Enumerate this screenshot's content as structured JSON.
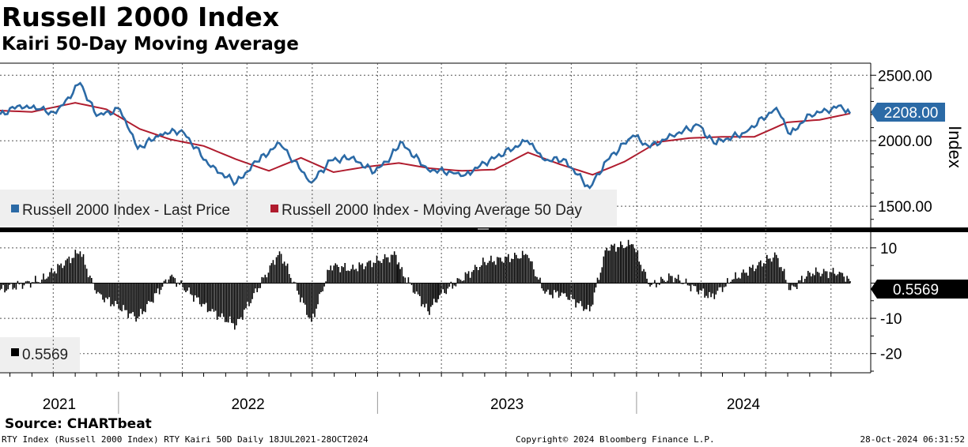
{
  "title": "Russell 2000 Index",
  "subtitle": "Kairi 50-Day Moving Average",
  "source": "Source: CHARTbeat",
  "footer": {
    "left": "RTY Index (Russell 2000 Index) RTY Kairi 50D  Daily 18JUL2021-28OCT2024",
    "center": "Copyright© 2024 Bloomberg Finance L.P.",
    "right": "28-Oct-2024 06:31:52"
  },
  "colors": {
    "price": "#2b6aa6",
    "ma": "#b01c2e",
    "kairi": "#000000",
    "grid": "#555555"
  },
  "chart_data": [
    {
      "type": "line",
      "ylabel": "Index",
      "ylim": [
        1350,
        2580
      ],
      "yticks": [
        1500,
        2000,
        2500
      ],
      "ytick_labels": [
        "1500.00",
        "2000.00",
        "2500.00"
      ],
      "last_value_label": "2208.00",
      "legend": [
        "Russell 2000 Index - Last Price",
        "Russell 2000 Index - Moving Average 50 Day"
      ],
      "series": [
        {
          "name": "Russell 2000 Index - Last Price",
          "x": [
            "2021-07-18",
            "2021-08-15",
            "2021-09-10",
            "2021-10-05",
            "2021-11-08",
            "2021-12-01",
            "2022-01-03",
            "2022-01-28",
            "2022-03-01",
            "2022-03-31",
            "2022-05-11",
            "2022-06-16",
            "2022-07-15",
            "2022-08-16",
            "2022-09-30",
            "2022-10-27",
            "2022-11-25",
            "2022-12-28",
            "2023-01-20",
            "2023-02-02",
            "2023-03-13",
            "2023-04-15",
            "2023-05-05",
            "2023-06-01",
            "2023-07-31",
            "2023-08-25",
            "2023-09-20",
            "2023-10-27",
            "2023-11-20",
            "2023-12-27",
            "2024-01-20",
            "2024-02-20",
            "2024-03-28",
            "2024-04-19",
            "2024-06-01",
            "2024-07-16",
            "2024-08-05",
            "2024-09-01",
            "2024-09-25",
            "2024-10-15",
            "2024-10-28"
          ],
          "values": [
            2200,
            2270,
            2240,
            2210,
            2440,
            2190,
            2240,
            1940,
            2050,
            2080,
            1800,
            1680,
            1840,
            1980,
            1680,
            1850,
            1870,
            1760,
            1880,
            1990,
            1780,
            1760,
            1740,
            1830,
            2000,
            1850,
            1860,
            1640,
            1850,
            2040,
            1950,
            2040,
            2120,
            1980,
            2060,
            2250,
            2050,
            2200,
            2230,
            2270,
            2208
          ]
        },
        {
          "name": "Russell 2000 Index - Moving Average 50 Day",
          "x": [
            "2021-07-18",
            "2021-09-01",
            "2021-11-01",
            "2021-12-15",
            "2022-01-31",
            "2022-03-15",
            "2022-05-01",
            "2022-06-15",
            "2022-08-01",
            "2022-09-15",
            "2022-10-31",
            "2022-12-15",
            "2023-01-31",
            "2023-03-15",
            "2023-04-30",
            "2023-06-15",
            "2023-08-01",
            "2023-09-15",
            "2023-10-31",
            "2023-12-15",
            "2024-01-31",
            "2024-03-15",
            "2024-04-30",
            "2024-06-15",
            "2024-07-31",
            "2024-09-15",
            "2024-10-28"
          ],
          "values": [
            2230,
            2220,
            2290,
            2240,
            2090,
            2010,
            1960,
            1860,
            1770,
            1870,
            1760,
            1800,
            1830,
            1790,
            1770,
            1780,
            1910,
            1820,
            1740,
            1840,
            1990,
            2020,
            2030,
            2030,
            2140,
            2160,
            2208
          ]
        }
      ]
    },
    {
      "type": "bar",
      "name": "Kairi 50D",
      "ylim": [
        -25,
        14
      ],
      "yticks": [
        -20,
        -10,
        0,
        10
      ],
      "ytick_labels": [
        "-20",
        "-10",
        "0",
        "10"
      ],
      "last_value_label": "0.5569",
      "legend": [
        "0.5569"
      ],
      "x": [
        "2021-07-18",
        "2021-09-15",
        "2021-11-08",
        "2021-12-01",
        "2022-01-28",
        "2022-03-15",
        "2022-05-11",
        "2022-06-16",
        "2022-08-16",
        "2022-09-30",
        "2022-10-27",
        "2022-11-25",
        "2023-01-27",
        "2023-02-02",
        "2023-03-13",
        "2023-04-01",
        "2023-06-01",
        "2023-07-31",
        "2023-08-25",
        "2023-09-20",
        "2023-10-27",
        "2023-11-20",
        "2023-12-27",
        "2024-01-20",
        "2024-02-20",
        "2024-04-15",
        "2024-05-15",
        "2024-07-16",
        "2024-08-05",
        "2024-09-01",
        "2024-10-15",
        "2024-10-28"
      ],
      "values": [
        -2,
        1,
        9,
        -3,
        -10,
        2,
        -8,
        -12,
        9,
        -11,
        5,
        4,
        8,
        4,
        -8,
        -3,
        6,
        8,
        -3,
        -3,
        -8,
        10,
        11,
        -1,
        2,
        -4,
        1,
        8,
        -2,
        3,
        3,
        0.5569
      ]
    }
  ],
  "x_axis": {
    "year_labels": [
      "2021",
      "2022",
      "2023",
      "2024"
    ]
  }
}
